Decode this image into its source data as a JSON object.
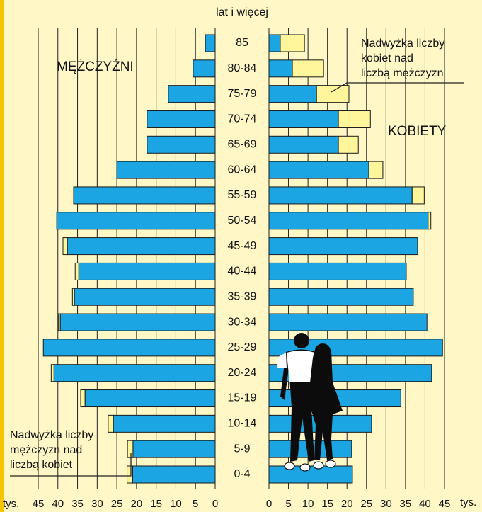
{
  "chart_data": {
    "type": "population_pyramid",
    "axis_title": "lat i więcej",
    "left_label": "MĘŻCZYŹNI",
    "right_label": "KOBIETY",
    "unit": "tys.",
    "categories": [
      "85",
      "80-84",
      "75-79",
      "70-74",
      "65-69",
      "60-64",
      "55-59",
      "50-54",
      "45-49",
      "40-44",
      "35-39",
      "30-34",
      "25-29",
      "20-24",
      "15-19",
      "10-14",
      "5-9",
      "0-4"
    ],
    "series": [
      {
        "side": "left",
        "color": "#1ba5e2",
        "values": [
          2.5,
          5.6,
          11.9,
          17.3,
          17.3,
          25,
          36,
          40.3,
          37.6,
          34.7,
          35.8,
          39.4,
          43.7,
          41,
          33.1,
          25.9,
          20.9,
          21
        ]
      },
      {
        "side": "left",
        "color": "#fff59a",
        "values": [
          0,
          0,
          0,
          0,
          0,
          0,
          0,
          0,
          1.1,
          0.9,
          0.5,
          0.5,
          0,
          0.7,
          1.1,
          1.3,
          1.4,
          1.4
        ]
      },
      {
        "side": "right",
        "color": "#1ba5e2",
        "values": [
          2.9,
          6,
          12.2,
          17.8,
          17.8,
          25.6,
          36.7,
          40.8,
          38.1,
          35.2,
          37,
          40.5,
          44.5,
          41.7,
          33.8,
          26.3,
          21.2,
          21.4
        ]
      },
      {
        "side": "right",
        "color": "#fff59a",
        "values": [
          6.2,
          8,
          8.3,
          8.2,
          5.1,
          3.6,
          3.1,
          0.7,
          0,
          0,
          0,
          0,
          0,
          0,
          0,
          0,
          0,
          0
        ]
      }
    ],
    "xlim": [
      0,
      45
    ],
    "xticks": [
      0,
      5,
      10,
      15,
      20,
      25,
      30,
      35,
      40,
      45
    ],
    "grid": true,
    "annotations": [
      {
        "lines": [
          "Nadwyżka liczby",
          "kobiet nad",
          "liczbą mężczyzn"
        ]
      },
      {
        "lines": [
          "Nadwyżka liczby",
          "mężczyzn nad",
          "liczbą kobiet"
        ]
      }
    ]
  }
}
